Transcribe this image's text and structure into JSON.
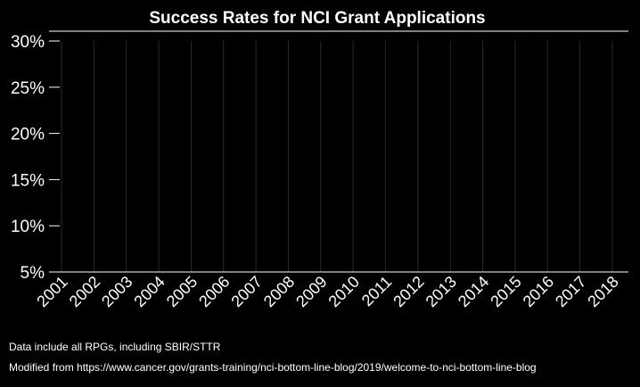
{
  "chart_data": {
    "type": "line",
    "title": "Success Rates for NCI Grant Applications",
    "xlabel": "",
    "ylabel": "",
    "categories": [
      "2001",
      "2002",
      "2003",
      "2004",
      "2005",
      "2006",
      "2007",
      "2008",
      "2009",
      "2010",
      "2011",
      "2012",
      "2013",
      "2014",
      "2015",
      "2016",
      "2017",
      "2018"
    ],
    "ylim": [
      5,
      30
    ],
    "yticks": [
      5,
      10,
      15,
      20,
      25,
      30
    ],
    "ytick_labels": [
      "5%",
      "10%",
      "15%",
      "20%",
      "25%",
      "30%"
    ],
    "series": [],
    "grid": "vertical",
    "colors": {
      "background": "#000000",
      "text": "#ffffff",
      "axis": "#ffffff",
      "grid": "#2a2a2a"
    }
  },
  "notes": {
    "line1": "Data include all RPGs, including SBIR/STTR",
    "line2": "Modified from https://www.cancer.gov/grants-training/nci-bottom-line-blog/2019/welcome-to-nci-bottom-line-blog"
  }
}
